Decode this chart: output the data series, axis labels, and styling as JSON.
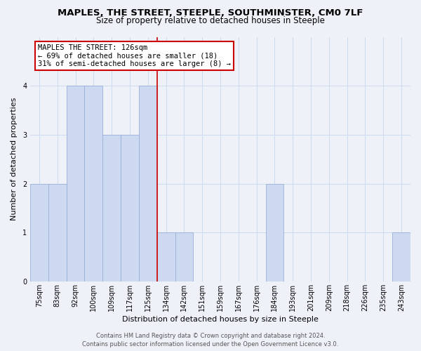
{
  "title": "MAPLES, THE STREET, STEEPLE, SOUTHMINSTER, CM0 7LF",
  "subtitle": "Size of property relative to detached houses in Steeple",
  "xlabel": "Distribution of detached houses by size in Steeple",
  "ylabel": "Number of detached properties",
  "footer_line1": "Contains HM Land Registry data © Crown copyright and database right 2024.",
  "footer_line2": "Contains public sector information licensed under the Open Government Licence v3.0.",
  "bins": [
    "75sqm",
    "83sqm",
    "92sqm",
    "100sqm",
    "109sqm",
    "117sqm",
    "125sqm",
    "134sqm",
    "142sqm",
    "151sqm",
    "159sqm",
    "167sqm",
    "176sqm",
    "184sqm",
    "193sqm",
    "201sqm",
    "209sqm",
    "218sqm",
    "226sqm",
    "235sqm",
    "243sqm"
  ],
  "counts": [
    2,
    2,
    4,
    4,
    3,
    3,
    4,
    1,
    1,
    0,
    0,
    0,
    0,
    2,
    0,
    0,
    0,
    0,
    0,
    0,
    1
  ],
  "bar_color": "#ccd9f0",
  "bar_edge_color": "#9ab0d8",
  "annotation_title": "MAPLES THE STREET: 126sqm",
  "annotation_line1": "← 69% of detached houses are smaller (18)",
  "annotation_line2": "31% of semi-detached houses are larger (8) →",
  "annotation_box_color": "white",
  "annotation_box_edge_color": "#cc0000",
  "reference_line_color": "#cc0000",
  "reference_line_x": 6.5,
  "ylim": [
    0,
    5
  ],
  "yticks": [
    0,
    1,
    2,
    3,
    4
  ],
  "grid_color": "#d0dced",
  "bg_color": "#eef2f8",
  "title_fontsize": 9.5,
  "subtitle_fontsize": 8.5,
  "axis_label_fontsize": 8,
  "tick_fontsize": 7,
  "annotation_fontsize": 7.5,
  "footer_fontsize": 6
}
